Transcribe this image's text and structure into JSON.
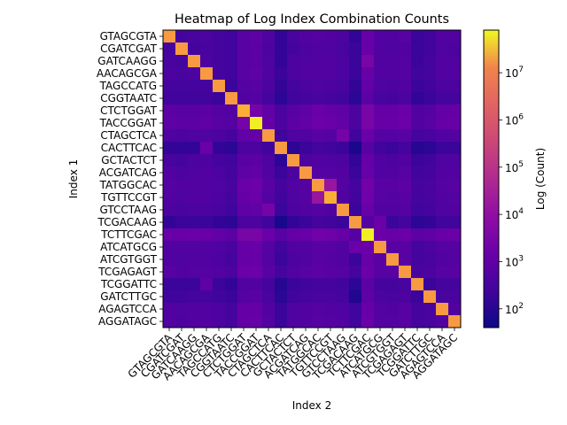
{
  "chart_data": {
    "type": "heatmap",
    "title": "Heatmap of Log Index Combination Counts",
    "xlabel": "Index 2",
    "ylabel": "Index 1",
    "colorbar_label": "Log (Count)",
    "colormap": "plasma",
    "scale": "log",
    "vmin": 40,
    "vmax": 80000000,
    "colorbar_ticks": [
      {
        "value": 100,
        "base": "10",
        "exp": "2"
      },
      {
        "value": 1000,
        "base": "10",
        "exp": "3"
      },
      {
        "value": 10000,
        "base": "10",
        "exp": "4"
      },
      {
        "value": 100000,
        "base": "10",
        "exp": "5"
      },
      {
        "value": 1000000,
        "base": "10",
        "exp": "6"
      },
      {
        "value": 10000000,
        "base": "10",
        "exp": "7"
      }
    ],
    "rows": [
      "GTAGCGTA",
      "CGATCGAT",
      "GATCAAGG",
      "AACAGCGA",
      "TAGCCATG",
      "CGGTAATC",
      "CTCTGGAT",
      "TACCGGAT",
      "CTAGCTCA",
      "CACTTCAC",
      "GCTACTCT",
      "ACGATCAG",
      "TATGGCAC",
      "TGTTCCGT",
      "GTCCTAAG",
      "TCGACAAG",
      "TCTTCGAC",
      "ATCATGCG",
      "ATCGTGGT",
      "TCGAGAGT",
      "TCGGATTC",
      "GATCTTGC",
      "AGAGTCCA",
      "AGGATAGC"
    ],
    "columns": [
      "GTAGCGTA",
      "CGATCGAT",
      "GATCAAGG",
      "AACAGCGA",
      "TAGCCATG",
      "CGGTAATC",
      "CTCTGGAT",
      "TACCGGAT",
      "CTAGCTCA",
      "CACTTCAC",
      "GCTACTCT",
      "ACGATCAG",
      "TATGGCAC",
      "TGTTCCGT",
      "GTCCTAAG",
      "TCGACAAG",
      "TCTTCGAC",
      "ATCATGCG",
      "ATCGTGGT",
      "TCGAGAGT",
      "TCGGATTC",
      "GATCTTGC",
      "AGAGTCCA",
      "AGGATAGC"
    ],
    "values": [
      [
        20000000,
        300,
        350,
        400,
        300,
        250,
        700,
        900,
        450,
        150,
        350,
        550,
        600,
        500,
        400,
        150,
        1400,
        550,
        500,
        650,
        200,
        250,
        500,
        500
      ],
      [
        300,
        20000000,
        300,
        350,
        300,
        250,
        700,
        800,
        400,
        150,
        300,
        400,
        500,
        450,
        350,
        200,
        1300,
        500,
        450,
        550,
        200,
        250,
        450,
        400
      ],
      [
        350,
        300,
        20000000,
        400,
        300,
        250,
        700,
        800,
        450,
        150,
        400,
        450,
        550,
        500,
        400,
        200,
        3000,
        500,
        500,
        600,
        200,
        300,
        500,
        500
      ],
      [
        400,
        350,
        400,
        20000000,
        300,
        250,
        700,
        900,
        450,
        200,
        400,
        500,
        550,
        500,
        400,
        200,
        1300,
        550,
        500,
        600,
        250,
        300,
        500,
        550
      ],
      [
        300,
        300,
        300,
        300,
        20000000,
        200,
        600,
        700,
        400,
        150,
        300,
        400,
        450,
        400,
        350,
        150,
        1000,
        450,
        400,
        500,
        200,
        250,
        400,
        400
      ],
      [
        250,
        250,
        250,
        250,
        200,
        20000000,
        500,
        600,
        300,
        120,
        250,
        300,
        350,
        300,
        250,
        120,
        800,
        350,
        300,
        400,
        150,
        200,
        300,
        300
      ],
      [
        800,
        700,
        700,
        800,
        600,
        500,
        30000000,
        2500,
        1000,
        400,
        700,
        900,
        1500,
        1200,
        900,
        400,
        3000,
        1200,
        1200,
        1500,
        500,
        600,
        1100,
        1200
      ],
      [
        900,
        800,
        800,
        900,
        700,
        600,
        2500,
        70000000,
        1100,
        400,
        800,
        1000,
        1700,
        1500,
        1000,
        400,
        3000,
        1300,
        1300,
        1700,
        500,
        700,
        1200,
        1300
      ],
      [
        450,
        400,
        450,
        450,
        400,
        300,
        1000,
        1100,
        20000000,
        250,
        450,
        500,
        700,
        600,
        2500,
        250,
        1500,
        600,
        600,
        700,
        300,
        350,
        550,
        600
      ],
      [
        150,
        150,
        150,
        1500,
        150,
        120,
        400,
        400,
        250,
        20000000,
        120,
        200,
        300,
        250,
        200,
        60,
        700,
        250,
        200,
        300,
        100,
        120,
        200,
        200
      ],
      [
        350,
        300,
        400,
        400,
        300,
        250,
        700,
        800,
        450,
        120,
        20000000,
        400,
        500,
        450,
        400,
        150,
        1200,
        500,
        400,
        550,
        200,
        250,
        450,
        450
      ],
      [
        550,
        400,
        450,
        500,
        400,
        300,
        900,
        1000,
        500,
        200,
        400,
        20000000,
        600,
        600,
        500,
        200,
        1300,
        550,
        550,
        650,
        250,
        300,
        500,
        550
      ],
      [
        600,
        500,
        550,
        550,
        450,
        350,
        1500,
        1700,
        700,
        300,
        500,
        600,
        20000000,
        15000,
        600,
        300,
        2000,
        700,
        700,
        800,
        300,
        350,
        600,
        650
      ],
      [
        500,
        450,
        500,
        500,
        400,
        300,
        1200,
        1500,
        600,
        250,
        450,
        600,
        15000,
        30000000,
        500,
        250,
        1800,
        650,
        600,
        700,
        300,
        350,
        550,
        600
      ],
      [
        400,
        350,
        400,
        400,
        350,
        250,
        900,
        1000,
        2500,
        200,
        400,
        500,
        600,
        500,
        20000000,
        200,
        1300,
        500,
        500,
        600,
        250,
        300,
        450,
        500
      ],
      [
        150,
        200,
        200,
        200,
        150,
        120,
        400,
        400,
        250,
        60,
        150,
        200,
        300,
        250,
        200,
        20000000,
        600,
        1500,
        200,
        300,
        120,
        150,
        250,
        250
      ],
      [
        1400,
        1300,
        1500,
        1300,
        1000,
        800,
        3000,
        3000,
        1500,
        700,
        1200,
        1300,
        2000,
        1800,
        1300,
        600,
        70000000,
        1500,
        1300,
        1600,
        800,
        900,
        1400,
        1500
      ],
      [
        550,
        500,
        500,
        550,
        450,
        350,
        1200,
        1300,
        600,
        250,
        500,
        550,
        700,
        650,
        500,
        1500,
        1500,
        20000000,
        700,
        700,
        300,
        400,
        600,
        600
      ],
      [
        500,
        450,
        500,
        500,
        400,
        300,
        1200,
        1300,
        600,
        200,
        400,
        550,
        700,
        600,
        500,
        200,
        1300,
        700,
        20000000,
        700,
        300,
        350,
        550,
        600
      ],
      [
        650,
        550,
        600,
        600,
        500,
        400,
        1500,
        1700,
        700,
        300,
        550,
        650,
        800,
        700,
        600,
        300,
        1600,
        700,
        700,
        20000000,
        350,
        400,
        650,
        700
      ],
      [
        200,
        200,
        200,
        900,
        200,
        150,
        500,
        500,
        300,
        100,
        200,
        250,
        300,
        300,
        250,
        120,
        800,
        300,
        300,
        350,
        20000000,
        200,
        300,
        300
      ],
      [
        250,
        250,
        300,
        300,
        250,
        200,
        600,
        700,
        350,
        120,
        250,
        300,
        350,
        350,
        300,
        80,
        900,
        400,
        350,
        400,
        200,
        20000000,
        350,
        350
      ],
      [
        500,
        450,
        500,
        500,
        400,
        300,
        1100,
        1200,
        550,
        200,
        450,
        500,
        600,
        550,
        450,
        250,
        1400,
        600,
        550,
        650,
        300,
        350,
        20000000,
        550
      ],
      [
        500,
        400,
        500,
        550,
        400,
        300,
        1200,
        1300,
        600,
        200,
        450,
        550,
        650,
        600,
        500,
        250,
        1500,
        600,
        600,
        700,
        300,
        350,
        550,
        20000000
      ]
    ]
  }
}
